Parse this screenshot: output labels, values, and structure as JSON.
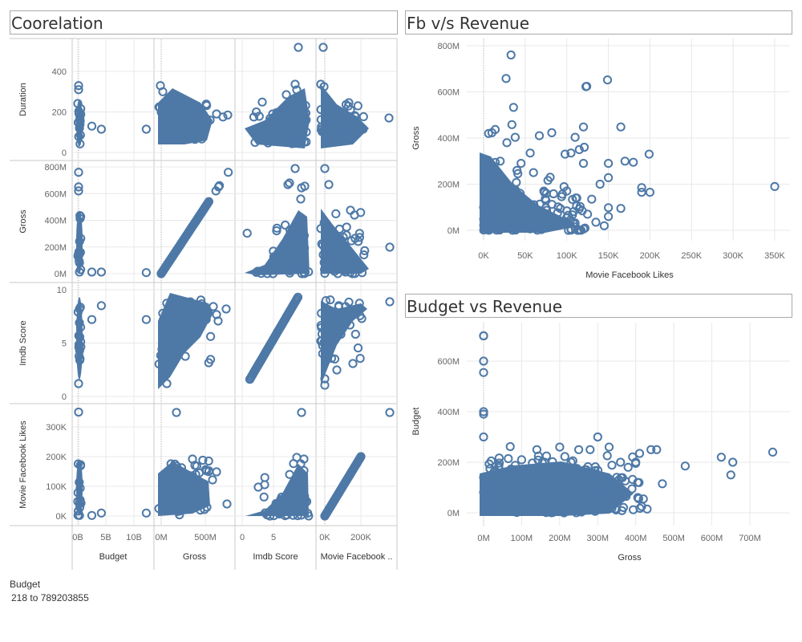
{
  "dashboard": {
    "matrix_title": "Coorelation",
    "fb_title": "Fb v/s Revenue",
    "budget_title": "Budget vs Revenue",
    "filter": {
      "label": "Budget",
      "range": "218 to 789203855"
    }
  },
  "colors": {
    "mark": "#4e79a7",
    "grid": "#e8e8e8",
    "axis_text": "#666666",
    "border": "#bdbdbd"
  },
  "chart_data": [
    {
      "type": "scatter",
      "title": "Coorelation",
      "kind": "scatter-matrix",
      "variables": [
        {
          "name": "Duration",
          "axis_label": "Duration",
          "range": [
            0,
            520
          ],
          "ticks": [
            0,
            200,
            400
          ],
          "tick_labels": [
            "0",
            "200",
            "400"
          ]
        },
        {
          "name": "Gross",
          "axis_label": "Gross",
          "range": [
            0,
            800000000
          ],
          "ticks": [
            0,
            200000000,
            400000000,
            600000000,
            800000000
          ],
          "tick_labels": [
            "0M",
            "200M",
            "400M",
            "600M",
            "800M"
          ]
        },
        {
          "name": "Imdb Score",
          "axis_label": "Imdb Score",
          "range": [
            0,
            10
          ],
          "ticks": [
            0,
            5,
            10
          ],
          "tick_labels": [
            "0",
            "5",
            "10"
          ]
        },
        {
          "name": "Movie Facebook Likes",
          "axis_label": "Movie Facebook Likes",
          "range": [
            0,
            350000
          ],
          "ticks": [
            0,
            100000,
            200000,
            300000
          ],
          "tick_labels": [
            "0K",
            "100K",
            "200K",
            "300K"
          ]
        }
      ],
      "columns": [
        {
          "name": "Budget",
          "axis_label": "Budget",
          "range": [
            0,
            12200000000
          ],
          "ticks": [
            0,
            5000000000,
            10000000000
          ],
          "tick_labels": [
            "0B",
            "5B",
            "10B"
          ]
        },
        {
          "name": "Gross",
          "axis_label": "Gross",
          "range": [
            0,
            800000000
          ],
          "ticks": [
            0,
            500000000
          ],
          "tick_labels": [
            "0M",
            "500M"
          ]
        },
        {
          "name": "Imdb Score",
          "axis_label": "Imdb Score",
          "range": [
            0,
            10
          ],
          "ticks": [
            0,
            5
          ],
          "tick_labels": [
            "0",
            "5"
          ]
        },
        {
          "name": "Movie Facebook Likes",
          "axis_label": "Movie Facebook ..",
          "range": [
            0,
            350000
          ],
          "ticks": [
            0,
            200000
          ],
          "tick_labels": [
            "0K",
            "200K"
          ]
        }
      ],
      "grid": true
    },
    {
      "type": "scatter",
      "title": "Fb v/s Revenue",
      "xlabel": "Movie Facebook Likes",
      "ylabel": "Gross",
      "xlim": [
        0,
        370000
      ],
      "ylim": [
        0,
        800000000
      ],
      "xticks": [
        0,
        50000,
        100000,
        150000,
        200000,
        250000,
        300000,
        350000
      ],
      "xtick_labels": [
        "0K",
        "50K",
        "100K",
        "150K",
        "200K",
        "250K",
        "300K",
        "350K"
      ],
      "yticks": [
        0,
        200000000,
        400000000,
        600000000,
        800000000
      ],
      "ytick_labels": [
        "0M",
        "200M",
        "400M",
        "600M",
        "800M"
      ],
      "grid": true,
      "points": [
        [
          33000,
          760000000
        ],
        [
          27000,
          658000000
        ],
        [
          149000,
          652000000
        ],
        [
          123000,
          623000000
        ],
        [
          124000,
          624000000
        ],
        [
          36000,
          533000000
        ],
        [
          34000,
          458000000
        ],
        [
          165000,
          448000000
        ],
        [
          120000,
          448000000
        ],
        [
          14000,
          437000000
        ],
        [
          6000,
          420000000
        ],
        [
          10000,
          423000000
        ],
        [
          82000,
          423000000
        ],
        [
          67000,
          410000000
        ],
        [
          38000,
          403000000
        ],
        [
          110000,
          403000000
        ],
        [
          28000,
          380000000
        ],
        [
          121000,
          360000000
        ],
        [
          115000,
          350000000
        ],
        [
          105000,
          335000000
        ],
        [
          98000,
          330000000
        ],
        [
          56000,
          335000000
        ],
        [
          199000,
          330000000
        ],
        [
          170000,
          300000000
        ],
        [
          180000,
          295000000
        ],
        [
          150000,
          290000000
        ],
        [
          20000,
          300000000
        ],
        [
          45000,
          290000000
        ],
        [
          120000,
          290000000
        ],
        [
          60000,
          250000000
        ],
        [
          80000,
          230000000
        ],
        [
          150000,
          228000000
        ],
        [
          140000,
          200000000
        ],
        [
          190000,
          185000000
        ],
        [
          200000,
          165000000
        ],
        [
          190000,
          165000000
        ],
        [
          350000,
          190000000
        ],
        [
          100000,
          170000000
        ],
        [
          112000,
          140000000
        ],
        [
          130000,
          135000000
        ],
        [
          150000,
          98000000
        ],
        [
          165000,
          95000000
        ],
        [
          125000,
          70000000
        ],
        [
          150000,
          60000000
        ],
        [
          100000,
          55000000
        ],
        [
          135000,
          35000000
        ],
        [
          108000,
          30000000
        ],
        [
          145000,
          20000000
        ],
        [
          90000,
          45000000
        ]
      ],
      "cluster_note": ""
    },
    {
      "type": "scatter",
      "title": "Budget vs Revenue",
      "xlabel": "Gross",
      "ylabel": "Budget",
      "xlim": [
        0,
        780000000
      ],
      "ylim": [
        -50000000,
        730000000
      ],
      "xticks": [
        0,
        100000000,
        200000000,
        300000000,
        400000000,
        500000000,
        600000000,
        700000000
      ],
      "xtick_labels": [
        "0M",
        "100M",
        "200M",
        "300M",
        "400M",
        "500M",
        "600M",
        "700M"
      ],
      "yticks": [
        0,
        200000000,
        400000000,
        600000000
      ],
      "ytick_labels": [
        "0M",
        "200M",
        "400M",
        "600M"
      ],
      "grid": true,
      "points": [
        [
          4000,
          700000000
        ],
        [
          1000,
          700000000
        ],
        [
          3000,
          600000000
        ],
        [
          1000,
          555000000
        ],
        [
          2000,
          400000000
        ],
        [
          15000,
          390000000
        ],
        [
          1000,
          300000000
        ],
        [
          760000000,
          240000000
        ],
        [
          625000000,
          220000000
        ],
        [
          655000000,
          200000000
        ],
        [
          650000000,
          150000000
        ],
        [
          530000000,
          185000000
        ],
        [
          470000000,
          115000000
        ],
        [
          455000000,
          250000000
        ],
        [
          440000000,
          250000000
        ],
        [
          410000000,
          235000000
        ],
        [
          400000000,
          200000000
        ],
        [
          405000000,
          120000000
        ],
        [
          430000000,
          15000000
        ],
        [
          420000000,
          55000000
        ],
        [
          300000000,
          300000000
        ],
        [
          330000000,
          260000000
        ],
        [
          360000000,
          200000000
        ],
        [
          380000000,
          180000000
        ],
        [
          350000000,
          140000000
        ],
        [
          390000000,
          95000000
        ],
        [
          340000000,
          80000000
        ],
        [
          300000000,
          60000000
        ],
        [
          250000000,
          250000000
        ],
        [
          280000000,
          250000000
        ],
        [
          200000000,
          260000000
        ],
        [
          140000000,
          250000000
        ],
        [
          70000000,
          262000000
        ],
        [
          20000000,
          205000000
        ],
        [
          40000000,
          185000000
        ],
        [
          100000000,
          210000000
        ],
        [
          160000000,
          200000000
        ],
        [
          230000000,
          200000000
        ],
        [
          270000000,
          170000000
        ],
        [
          310000000,
          110000000
        ],
        [
          250000000,
          120000000
        ],
        [
          180000000,
          150000000
        ],
        [
          120000000,
          160000000
        ],
        [
          60000000,
          150000000
        ],
        [
          30000000,
          130000000
        ],
        [
          90000000,
          100000000
        ],
        [
          150000000,
          90000000
        ],
        [
          210000000,
          80000000
        ],
        [
          260000000,
          40000000
        ],
        [
          320000000,
          25000000
        ]
      ]
    }
  ]
}
